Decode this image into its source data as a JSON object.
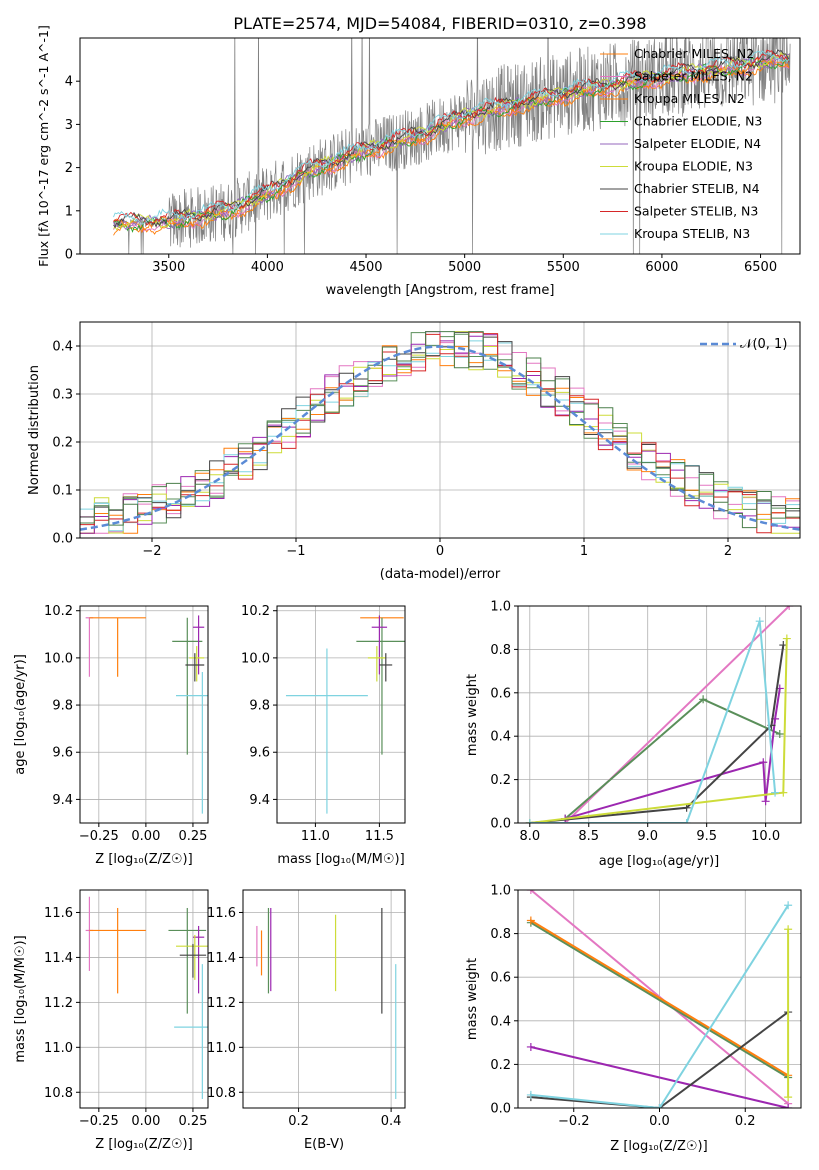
{
  "figure": {
    "title": "PLATE=2574, MJD=54084, FIBERID=0310, z=0.398"
  },
  "colors": {
    "data": "#808080",
    "legend_series": [
      "#ff7f0e",
      "#e377c2",
      "#ff7f0e",
      "#2ca02c",
      "#9467bd",
      "#cddc39",
      "#444444",
      "#d62728",
      "#7fd3e0"
    ],
    "normal_curve": "#5b8bd6",
    "hist": [
      "#5a8f5a",
      "#e377c2",
      "#ff7f0e",
      "#cddc39",
      "#9c27b0",
      "#7fd3e0",
      "#444444",
      "#d62728",
      "#4a7f4a"
    ],
    "marker_lines": [
      "#e377c2",
      "#ff7f0e",
      "#5a8f5a",
      "#9c27b0",
      "#cddc39",
      "#444444",
      "#7fd3e0"
    ]
  },
  "chart_data": [
    {
      "type": "line",
      "panel": "spectrum",
      "xlabel": "wavelength [Angstrom, rest frame]",
      "ylabel": "Flux [f_λ 10^-17 erg cm^-2 s^-1 A^-1]",
      "xlim": [
        3050,
        6700
      ],
      "ylim": [
        0,
        5
      ],
      "xticks": [
        3500,
        4000,
        4500,
        5000,
        5500,
        6000,
        6500
      ],
      "yticks": [
        0,
        1,
        2,
        3,
        4
      ],
      "legend_position": "upper right",
      "legend": [
        "Chabrier MILES, N_SSP=2",
        "Salpeter MILES, N_SSP=2",
        "Kroupa MILES, N_SSP=2",
        "Chabrier ELODIE, N_SSP=3",
        "Salpeter ELODIE, N_SSP=4",
        "Kroupa ELODIE, N_SSP=3",
        "Chabrier STELIB, N_SSP=4",
        "Salpeter STELIB, N_SSP=3",
        "Kroupa STELIB, N_SSP=3"
      ],
      "continuum_x": [
        3220,
        3500,
        3800,
        4000,
        4200,
        4500,
        4800,
        5000,
        5300,
        5600,
        6000,
        6300,
        6600
      ],
      "continuum_y": [
        0.7,
        0.75,
        1.0,
        1.4,
        1.9,
        2.4,
        2.8,
        3.2,
        3.5,
        3.8,
        4.1,
        4.3,
        4.5
      ]
    },
    {
      "type": "bar",
      "panel": "residual-histogram",
      "xlabel": "(data-model)/error",
      "ylabel": "Normed distribution",
      "xlim": [
        -2.5,
        2.5
      ],
      "ylim": [
        0,
        0.45
      ],
      "xticks": [
        -2,
        -1,
        0,
        1,
        2
      ],
      "yticks": [
        0.0,
        0.1,
        0.2,
        0.3,
        0.4
      ],
      "grid": true,
      "legend": [
        "𝒩(0, 1)"
      ],
      "legend_position": "upper right",
      "normal_mean": 0,
      "normal_sigma": 1
    },
    {
      "type": "scatter",
      "panel": "age-vs-Z",
      "xlabel": "Z [log10(Z/Z☉)]",
      "ylabel": "age [log10(age/yr)]",
      "xlim": [
        -0.35,
        0.33
      ],
      "ylim": [
        9.3,
        10.22
      ],
      "xticks": [
        -0.25,
        0.0,
        0.25
      ],
      "xtick_labels": [
        "−0.25",
        "0.00",
        "0.25"
      ],
      "yticks": [
        9.4,
        9.6,
        9.8,
        10.0,
        10.2
      ],
      "grid": true,
      "points": [
        {
          "x": -0.3,
          "y": 10.17,
          "xerr": 0.02,
          "yerr_low": 0.25,
          "yerr_high": 0.0
        },
        {
          "x": -0.15,
          "y": 10.17,
          "xerr": 0.15,
          "yerr_low": 0.25,
          "yerr_high": 0.0
        },
        {
          "x": 0.22,
          "y": 10.07,
          "xerr": 0.08,
          "yerr_low": 0.48,
          "yerr_high": 0.1
        },
        {
          "x": 0.28,
          "y": 10.13,
          "xerr": 0.03,
          "yerr_low": 0.2,
          "yerr_high": 0.05
        },
        {
          "x": 0.27,
          "y": 10.0,
          "xerr": 0.04,
          "yerr_low": 0.1,
          "yerr_high": 0.05
        },
        {
          "x": 0.26,
          "y": 9.97,
          "xerr": 0.05,
          "yerr_low": 0.07,
          "yerr_high": 0.05
        },
        {
          "x": 0.3,
          "y": 9.84,
          "xerr": 0.14,
          "yerr_low": 0.5,
          "yerr_high": 0.1
        }
      ]
    },
    {
      "type": "scatter",
      "panel": "age-vs-mass",
      "xlabel": "mass [log10(M/M☉)]",
      "ylabel": "",
      "xlim": [
        10.7,
        11.7
      ],
      "ylim": [
        9.3,
        10.22
      ],
      "xticks": [
        11.0,
        11.5
      ],
      "yticks": [
        9.4,
        9.6,
        9.8,
        10.0,
        10.2
      ],
      "grid": true,
      "points": [
        {
          "x": 11.52,
          "y": 10.17,
          "xerr": 0.17,
          "yerr_low": 0.0,
          "yerr_high": 0.0
        },
        {
          "x": 11.52,
          "y": 10.07,
          "xerr": 0.2,
          "yerr_low": 0.48,
          "yerr_high": 0.1
        },
        {
          "x": 11.5,
          "y": 10.13,
          "xerr": 0.06,
          "yerr_low": 0.2,
          "yerr_high": 0.05
        },
        {
          "x": 11.48,
          "y": 10.0,
          "xerr": 0.07,
          "yerr_low": 0.1,
          "yerr_high": 0.05
        },
        {
          "x": 11.55,
          "y": 9.97,
          "xerr": 0.05,
          "yerr_low": 0.07,
          "yerr_high": 0.05
        },
        {
          "x": 11.09,
          "y": 9.84,
          "xerr": 0.32,
          "yerr_low": 0.5,
          "yerr_high": 0.2
        }
      ]
    },
    {
      "type": "line",
      "panel": "mass-weight-vs-age",
      "xlabel": "age [log10(age/yr)]",
      "ylabel": "mass weight",
      "xlim": [
        7.9,
        10.3
      ],
      "ylim": [
        0,
        1
      ],
      "xticks": [
        8.0,
        8.5,
        9.0,
        9.5,
        10.0
      ],
      "yticks": [
        0.0,
        0.2,
        0.4,
        0.6,
        0.8,
        1.0
      ],
      "grid": true,
      "series": [
        {
          "x": [
            8.3,
            10.2
          ],
          "y": [
            0.0,
            1.0
          ]
        },
        {
          "x": [
            8.3,
            9.47,
            10.12
          ],
          "y": [
            0.02,
            0.57,
            0.41
          ]
        },
        {
          "x": [
            8.3,
            9.98,
            10.0,
            10.08,
            10.12
          ],
          "y": [
            0.02,
            0.28,
            0.1,
            0.48,
            0.62
          ]
        },
        {
          "x": [
            8.0,
            9.33,
            10.05,
            10.15
          ],
          "y": [
            0.0,
            0.07,
            0.45,
            0.82
          ]
        },
        {
          "x": [
            8.0,
            10.15,
            10.18
          ],
          "y": [
            0.0,
            0.14,
            0.85
          ]
        },
        {
          "x": [
            8.0,
            9.33,
            9.95,
            10.08
          ],
          "y": [
            0.0,
            0.0,
            0.93,
            0.14
          ]
        }
      ]
    },
    {
      "type": "scatter",
      "panel": "mass-vs-Z",
      "xlabel": "Z [log10(Z/Z☉)]",
      "ylabel": "mass [log10(M/M☉)]",
      "xlim": [
        -0.35,
        0.33
      ],
      "ylim": [
        10.73,
        11.7
      ],
      "xticks": [
        -0.25,
        0.0,
        0.25
      ],
      "xtick_labels": [
        "−0.25",
        "0.00",
        "0.25"
      ],
      "yticks": [
        10.8,
        11.0,
        11.2,
        11.4,
        11.6
      ],
      "grid": true
    },
    {
      "type": "scatter",
      "panel": "mass-vs-EBV",
      "xlabel": "E(B-V)",
      "ylabel": "",
      "xlim": [
        0.08,
        0.43
      ],
      "ylim": [
        10.73,
        11.7
      ],
      "xticks": [
        0.2,
        0.4
      ],
      "yticks": [
        10.8,
        11.0,
        11.2,
        11.4,
        11.6
      ],
      "grid": true
    },
    {
      "type": "line",
      "panel": "mass-weight-vs-Z",
      "xlabel": "Z [log10(Z/Z☉)]",
      "ylabel": "mass weight",
      "xlim": [
        -0.33,
        0.33
      ],
      "ylim": [
        0,
        1
      ],
      "xticks": [
        -0.2,
        0.0,
        0.2
      ],
      "xtick_labels": [
        "−0.2",
        "0.0",
        "0.2"
      ],
      "yticks": [
        0.0,
        0.2,
        0.4,
        0.6,
        0.8,
        1.0
      ],
      "grid": true
    }
  ]
}
